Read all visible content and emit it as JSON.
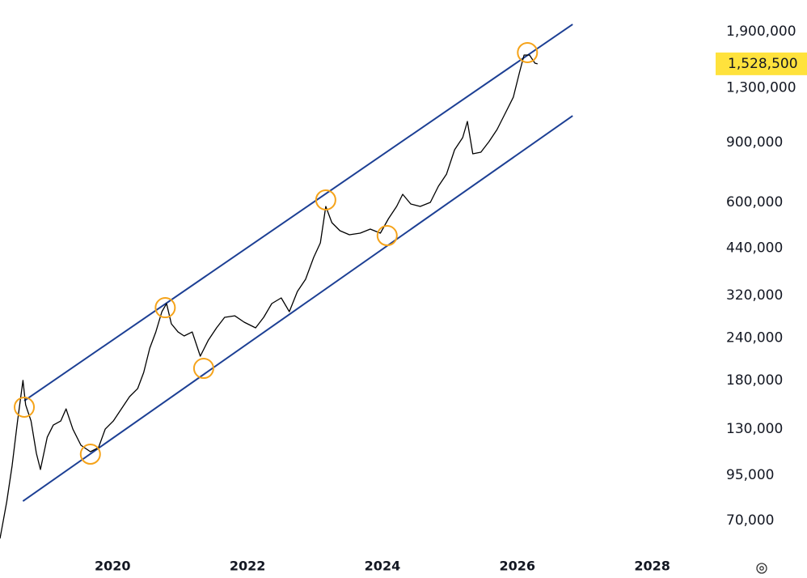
{
  "chart_data": {
    "type": "line",
    "log_scale": true,
    "grid": false,
    "xlim": [
      2018.33,
      2028.94
    ],
    "xticks": [
      2020,
      2022,
      2024,
      2026,
      2028
    ],
    "ylim": [
      57200,
      2352000
    ],
    "yticks": [
      {
        "value": 70000,
        "label": "70,000"
      },
      {
        "value": 95000,
        "label": "95,000"
      },
      {
        "value": 130000,
        "label": "130,000"
      },
      {
        "value": 180000,
        "label": "180,000"
      },
      {
        "value": 240000,
        "label": "240,000"
      },
      {
        "value": 320000,
        "label": "320,000"
      },
      {
        "value": 440000,
        "label": "440,000"
      },
      {
        "value": 600000,
        "label": "600,000"
      },
      {
        "value": 900000,
        "label": "900,000"
      },
      {
        "value": 1300000,
        "label": "1,300,000"
      },
      {
        "value": 1900000,
        "label": "1,900,000"
      }
    ],
    "series": [
      {
        "color": "#000000",
        "x": [
          2018.33,
          2018.43,
          2018.51,
          2018.59,
          2018.67,
          2018.71,
          2018.79,
          2018.87,
          2018.93,
          2019.03,
          2019.12,
          2019.23,
          2019.31,
          2019.41,
          2019.53,
          2019.67,
          2019.79,
          2019.89,
          2020.01,
          2020.13,
          2020.25,
          2020.37,
          2020.46,
          2020.55,
          2020.64,
          2020.73,
          2020.8,
          2020.87,
          2020.97,
          2021.06,
          2021.18,
          2021.3,
          2021.42,
          2021.54,
          2021.66,
          2021.81,
          2021.95,
          2022.12,
          2022.24,
          2022.36,
          2022.5,
          2022.62,
          2022.74,
          2022.86,
          2022.98,
          2023.08,
          2023.16,
          2023.25,
          2023.37,
          2023.51,
          2023.67,
          2023.82,
          2023.97,
          2024.09,
          2024.21,
          2024.3,
          2024.42,
          2024.56,
          2024.71,
          2024.83,
          2024.95,
          2025.07,
          2025.19,
          2025.26,
          2025.34,
          2025.46,
          2025.58,
          2025.7,
          2025.82,
          2025.94,
          2026.03,
          2026.1,
          2026.18,
          2026.26,
          2026.3
        ],
        "values": [
          62000,
          79400,
          101500,
          137100,
          180300,
          152900,
          137100,
          110200,
          98800,
          122900,
          133400,
          137100,
          148800,
          129800,
          116400,
          111400,
          114500,
          129800,
          137100,
          148800,
          161600,
          170600,
          190300,
          224200,
          250100,
          286800,
          302900,
          264200,
          250100,
          243400,
          250100,
          212300,
          236800,
          257100,
          276000,
          279000,
          267100,
          257100,
          276000,
          302900,
          314700,
          286800,
          328800,
          356900,
          413600,
          456400,
          583700,
          523200,
          495400,
          482000,
          487400,
          500800,
          487400,
          537700,
          583700,
          633400,
          593300,
          583700,
          599800,
          669000,
          726100,
          855700,
          929000,
          1036000,
          832600,
          841600,
          903600,
          980800,
          1094000,
          1220000,
          1438000,
          1622000,
          1622000,
          1536000,
          1528500
        ]
      }
    ],
    "lines": [
      {
        "color": "#1c3f94",
        "x": [
          2018.69,
          2026.82
        ],
        "values": [
          157200,
          1996000
        ]
      },
      {
        "color": "#1c3f94",
        "x": [
          2018.67,
          2026.82
        ],
        "values": [
          79800,
          1076000
        ]
      }
    ],
    "markers": {
      "color": "#f5a31a",
      "x": [
        2018.69,
        2019.67,
        2020.78,
        2021.35,
        2023.16,
        2024.07,
        2026.15
      ],
      "values": [
        150500,
        109600,
        294700,
        195600,
        609800,
        479400,
        1649000
      ]
    },
    "last_price": {
      "value": 1528500,
      "label": "1,528,500",
      "color": "#ffe23c"
    }
  }
}
